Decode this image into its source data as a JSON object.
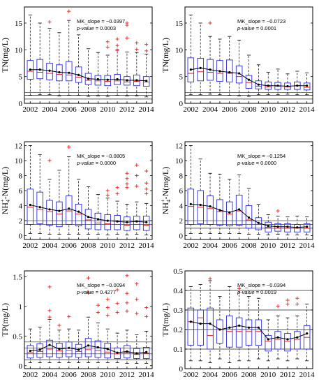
{
  "chart_data": [
    {
      "type": "box",
      "ylabel": "TN(mg/L)",
      "ylim": [
        0,
        18
      ],
      "yticks": [
        0,
        5,
        10,
        15
      ],
      "x": [
        2002,
        2003,
        2004,
        2005,
        2006,
        2007,
        2008,
        2009,
        2010,
        2011,
        2012,
        2013,
        2014
      ],
      "xticks": [
        2002,
        2004,
        2006,
        2008,
        2010,
        2012,
        2014
      ],
      "mk_slope": "MK_slope = −0.0397",
      "p_value": "p-value = 0.0003",
      "hlines": [
        0.8,
        1.5,
        2.0
      ],
      "mean": [
        6.3,
        6.3,
        6.1,
        5.8,
        5.7,
        5.3,
        4.6,
        4.5,
        4.4,
        4.5,
        4.3,
        4.3,
        4.2
      ],
      "median": [
        6.0,
        5.8,
        5.6,
        5.4,
        5.3,
        4.9,
        4.3,
        4.2,
        4.1,
        4.2,
        4.0,
        4.1,
        4.0
      ],
      "q1": [
        4.5,
        4.6,
        4.4,
        4.2,
        4.2,
        3.9,
        3.5,
        3.4,
        3.3,
        3.5,
        3.4,
        3.3,
        3.2
      ],
      "q3": [
        8.0,
        8.2,
        7.5,
        7.2,
        7.8,
        6.8,
        5.6,
        5.2,
        5.2,
        5.4,
        5.0,
        5.3,
        5.0
      ],
      "wlo": [
        1.5,
        1.6,
        1.6,
        1.4,
        1.5,
        1.5,
        1.3,
        1.4,
        1.3,
        1.5,
        1.4,
        1.4,
        1.2
      ],
      "whi": [
        16.5,
        15.0,
        14.0,
        13.2,
        15.5,
        12.8,
        10.2,
        9.5,
        9.0,
        10.0,
        9.6,
        9.5,
        9.2
      ],
      "outliers": [
        [],
        [],
        [
          15.2
        ],
        [],
        [
          17.2
        ],
        [],
        [],
        [],
        [
          11.5,
          10.5
        ],
        [
          12.0,
          10.8,
          9.9
        ],
        [
          15.0,
          14.6,
          12.2
        ],
        [
          11.3,
          10.1
        ],
        [
          11.0,
          9.8
        ]
      ]
    },
    {
      "type": "box",
      "ylabel": "TN(mg/L)",
      "ylim": [
        0,
        18
      ],
      "yticks": [
        0,
        5,
        10,
        15
      ],
      "x": [
        2002,
        2003,
        2004,
        2005,
        2006,
        2007,
        2008,
        2009,
        2010,
        2011,
        2012,
        2013,
        2014
      ],
      "xticks": [
        2002,
        2004,
        2006,
        2008,
        2010,
        2012,
        2014
      ],
      "mk_slope": "MK_slope = −0.0723",
      "p_value": "p-value = 0.0001",
      "hlines": [
        0.8,
        1.5,
        2.0
      ],
      "mean": [
        6.3,
        6.6,
        6.3,
        6.0,
        5.8,
        5.6,
        4.4,
        3.5,
        3.3,
        3.3,
        3.2,
        3.3,
        3.3
      ],
      "median": [
        5.6,
        5.9,
        5.8,
        5.6,
        5.6,
        5.0,
        3.9,
        3.2,
        3.1,
        3.2,
        3.1,
        3.3,
        3.0
      ],
      "q1": [
        4.0,
        4.2,
        4.3,
        4.1,
        4.0,
        3.8,
        2.8,
        2.7,
        2.6,
        2.6,
        2.6,
        2.6,
        2.5
      ],
      "q3": [
        8.5,
        8.4,
        8.2,
        8.0,
        8.1,
        7.0,
        5.2,
        4.2,
        4.0,
        3.9,
        3.8,
        4.0,
        3.8
      ],
      "wlo": [
        1.6,
        1.6,
        1.7,
        1.6,
        1.5,
        1.4,
        1.3,
        1.6,
        1.6,
        1.6,
        1.7,
        1.6,
        1.6
      ],
      "whi": [
        16.5,
        15.0,
        12.5,
        12.0,
        12.5,
        11.8,
        9.0,
        7.2,
        5.8,
        6.4,
        5.5,
        6.0,
        5.7
      ],
      "outliers": [
        [],
        [],
        [
          15.0
        ],
        [],
        [],
        [],
        [],
        [],
        [],
        [],
        [],
        [],
        []
      ]
    },
    {
      "type": "box",
      "ylabel": "NH4+-N(mg/L)",
      "ylabel_main": "NH",
      "ylabel_sub": "4",
      "ylabel_sup": "+",
      "ylabel_tail": "-N(mg/L)",
      "ylim": [
        -0.5,
        12.5
      ],
      "yticks": [
        0,
        2,
        4,
        6,
        8,
        10,
        12
      ],
      "x": [
        2002,
        2003,
        2004,
        2005,
        2006,
        2007,
        2008,
        2009,
        2010,
        2011,
        2012,
        2013,
        2014
      ],
      "xticks": [
        2002,
        2004,
        2006,
        2008,
        2010,
        2012,
        2014
      ],
      "mk_slope": "MK_slope = −0.0805",
      "p_value": "p-value = 0.0000",
      "hlines": [
        1.5,
        2.0
      ],
      "mean": [
        4.1,
        3.8,
        3.5,
        3.3,
        3.6,
        3.2,
        2.5,
        2.2,
        2.0,
        1.9,
        1.8,
        1.9,
        1.8
      ],
      "median": [
        3.8,
        3.5,
        3.2,
        2.9,
        3.3,
        2.9,
        2.1,
        1.7,
        1.6,
        1.5,
        1.4,
        1.5,
        1.4
      ],
      "q1": [
        1.5,
        1.6,
        1.4,
        1.2,
        1.5,
        1.3,
        0.9,
        0.8,
        0.8,
        0.8,
        0.7,
        0.8,
        0.7
      ],
      "q3": [
        6.2,
        5.8,
        4.7,
        4.5,
        5.3,
        4.2,
        3.5,
        3.0,
        2.8,
        2.7,
        2.5,
        2.6,
        2.6
      ],
      "wlo": [
        0.3,
        0.3,
        0.2,
        0.2,
        0.2,
        0.2,
        0.2,
        0.2,
        0.1,
        0.2,
        0.1,
        0.2,
        0.1
      ],
      "whi": [
        12.0,
        10.8,
        7.5,
        8.7,
        10.5,
        7.5,
        6.5,
        5.5,
        5.0,
        4.6,
        4.2,
        4.5,
        4.3
      ],
      "outliers": [
        [],
        [],
        [
          10.0
        ],
        [],
        [
          11.8
        ],
        [],
        [],
        [],
        [
          6.0,
          5.4
        ],
        [
          6.4,
          5.6
        ],
        [
          8.3,
          7.6,
          6.9,
          6.4
        ],
        [
          9.4,
          8.0,
          6.6
        ],
        [
          8.6,
          7.0,
          6.2,
          5.6
        ]
      ]
    },
    {
      "type": "box",
      "ylabel": "NH4+-N(mg/L)",
      "ylabel_main": "NH",
      "ylabel_sub": "4",
      "ylabel_sup": "+",
      "ylabel_tail": "-N(mg/L)",
      "ylim": [
        -0.5,
        12.5
      ],
      "yticks": [
        0,
        2,
        4,
        6,
        8,
        10,
        12
      ],
      "x": [
        2002,
        2003,
        2004,
        2005,
        2006,
        2007,
        2008,
        2009,
        2010,
        2011,
        2012,
        2013,
        2014
      ],
      "xticks": [
        2002,
        2004,
        2006,
        2008,
        2010,
        2012,
        2014
      ],
      "mk_slope": "MK_slope = −0.1254",
      "p_value": "p-value = 0.0000",
      "hlines": [
        1.0,
        1.5,
        2.0
      ],
      "mean": [
        4.2,
        4.1,
        3.9,
        3.4,
        3.1,
        3.5,
        2.4,
        1.7,
        1.3,
        1.2,
        1.2,
        1.1,
        1.2
      ],
      "median": [
        3.9,
        3.8,
        3.6,
        3.2,
        2.9,
        3.3,
        2.1,
        1.5,
        1.1,
        1.0,
        1.0,
        1.0,
        1.0
      ],
      "q1": [
        1.5,
        1.6,
        1.5,
        1.4,
        1.3,
        1.4,
        1.0,
        0.8,
        0.5,
        0.6,
        0.5,
        0.5,
        0.5
      ],
      "q3": [
        6.2,
        6.0,
        5.3,
        4.8,
        4.5,
        5.4,
        4.0,
        2.4,
        1.8,
        1.6,
        1.6,
        1.5,
        1.6
      ],
      "wlo": [
        0.3,
        0.3,
        0.3,
        0.3,
        0.3,
        0.3,
        0.2,
        0.2,
        0.1,
        0.2,
        0.1,
        0.1,
        0.1
      ],
      "whi": [
        12.0,
        10.2,
        8.3,
        8.2,
        7.5,
        8.1,
        6.3,
        4.2,
        2.8,
        2.6,
        2.5,
        2.6,
        2.5
      ],
      "outliers": [
        [],
        [],
        [],
        [],
        [],
        [],
        [],
        [],
        [],
        [
          3.3
        ],
        [],
        [],
        []
      ]
    },
    {
      "type": "box",
      "ylabel": "TP(mg/L)",
      "ylim": [
        -0.05,
        1.6
      ],
      "yticks": [
        0,
        0.5,
        1,
        1.5
      ],
      "ytick_labels": [
        "0",
        "0.5",
        "1",
        "1.5"
      ],
      "x": [
        2002,
        2003,
        2004,
        2005,
        2006,
        2007,
        2008,
        2009,
        2010,
        2011,
        2012,
        2013,
        2014
      ],
      "xticks": [
        2002,
        2004,
        2006,
        2008,
        2010,
        2012,
        2014
      ],
      "mk_slope": "MK_slope = −0.0094",
      "p_value": "p-value = 0.4277",
      "hlines": [
        0.1,
        0.2,
        0.3,
        0.4
      ],
      "mean": [
        0.25,
        0.27,
        0.35,
        0.28,
        0.3,
        0.27,
        0.34,
        0.31,
        0.28,
        0.22,
        0.24,
        0.21,
        0.23
      ],
      "median": [
        0.22,
        0.24,
        0.28,
        0.25,
        0.26,
        0.24,
        0.27,
        0.26,
        0.23,
        0.2,
        0.22,
        0.19,
        0.21
      ],
      "q1": [
        0.13,
        0.14,
        0.15,
        0.14,
        0.15,
        0.14,
        0.15,
        0.14,
        0.13,
        0.12,
        0.13,
        0.12,
        0.12
      ],
      "q3": [
        0.34,
        0.37,
        0.43,
        0.38,
        0.4,
        0.36,
        0.46,
        0.42,
        0.38,
        0.3,
        0.34,
        0.29,
        0.31
      ],
      "wlo": [
        0.05,
        0.05,
        0.05,
        0.05,
        0.05,
        0.05,
        0.05,
        0.05,
        0.05,
        0.05,
        0.04,
        0.04,
        0.04
      ],
      "whi": [
        0.62,
        0.65,
        0.78,
        0.6,
        0.62,
        0.6,
        0.82,
        0.72,
        0.62,
        0.55,
        0.6,
        0.52,
        0.58
      ],
      "outliers": [
        [],
        [],
        [
          1.33,
          0.93,
          0.82
        ],
        [
          0.68
        ],
        [
          0.83
        ],
        [],
        [
          1.48,
          1.23
        ],
        [
          1.02,
          0.9
        ],
        [
          1.12,
          0.98,
          0.85
        ],
        [
          1.28,
          1.05,
          0.9
        ],
        [
          1.52,
          1.22,
          1.06,
          0.92
        ],
        [
          1.38,
          1.12,
          0.88
        ],
        [
          0.98,
          0.83
        ]
      ]
    },
    {
      "type": "box",
      "ylabel": "TP(mg/L)",
      "ylim": [
        0,
        0.5
      ],
      "yticks": [
        0,
        0.1,
        0.2,
        0.3,
        0.4,
        0.5
      ],
      "ytick_labels": [
        "0",
        "0.1",
        "0.2",
        "0.3",
        "0.4",
        "0.5"
      ],
      "x": [
        2002,
        2003,
        2004,
        2005,
        2006,
        2007,
        2008,
        2009,
        2010,
        2011,
        2012,
        2013,
        2014
      ],
      "xticks": [
        2002,
        2004,
        2006,
        2008,
        2010,
        2012,
        2014
      ],
      "mk_slope": "MK_slope = −0.0394",
      "p_value": "p-value = 0.0019",
      "hlines": [
        0.1,
        0.2,
        0.3,
        0.4
      ],
      "mean": [
        0.24,
        0.23,
        0.23,
        0.2,
        0.21,
        0.22,
        0.21,
        0.21,
        0.15,
        0.16,
        0.15,
        0.16,
        0.18
      ],
      "median": [
        0.24,
        0.26,
        0.17,
        0.2,
        0.19,
        0.19,
        0.19,
        0.19,
        0.14,
        0.15,
        0.14,
        0.15,
        0.16
      ],
      "q1": [
        0.12,
        0.12,
        0.1,
        0.13,
        0.11,
        0.11,
        0.12,
        0.12,
        0.09,
        0.1,
        0.09,
        0.1,
        0.1
      ],
      "q3": [
        0.31,
        0.3,
        0.31,
        0.25,
        0.27,
        0.26,
        0.25,
        0.25,
        0.17,
        0.19,
        0.18,
        0.19,
        0.22
      ],
      "wlo": [
        0.04,
        0.04,
        0.03,
        0.05,
        0.03,
        0.04,
        0.04,
        0.05,
        0.04,
        0.05,
        0.04,
        0.05,
        0.04
      ],
      "whi": [
        0.42,
        0.43,
        0.45,
        0.37,
        0.42,
        0.41,
        0.37,
        0.36,
        0.25,
        0.27,
        0.26,
        0.27,
        0.33
      ],
      "outliers": [
        [],
        [],
        [
          0.46
        ],
        [],
        [],
        [
          0.41
        ],
        [],
        [],
        [],
        [
          0.32
        ],
        [
          0.35,
          0.33
        ],
        [
          0.36,
          0.33
        ],
        []
      ]
    }
  ]
}
